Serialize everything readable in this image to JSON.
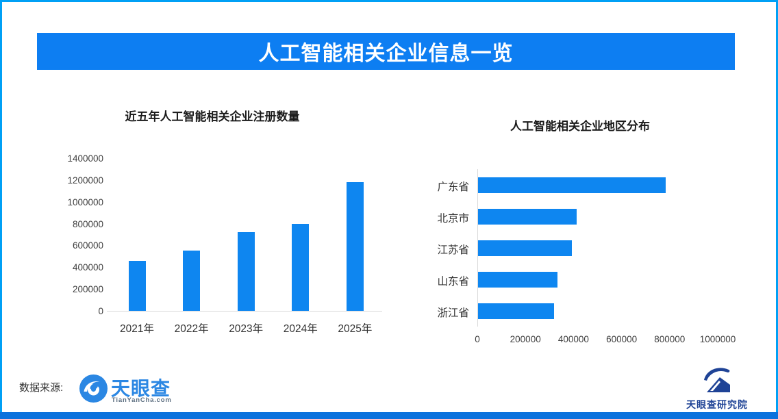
{
  "banner": {
    "title": "人工智能相关企业信息一览"
  },
  "footer": {
    "source_label": "数据来源:",
    "tianyancha": {
      "name": "天眼查",
      "domain": "TianYanCha.com"
    },
    "institute": {
      "name": "天眼查研究院"
    }
  },
  "colors": {
    "banner_blue": "#0D7EF2",
    "bar_blue": "#0E86F0",
    "frame_cyan": "#00A0F5",
    "bottom_bar_blue": "#0B72DD",
    "tianyancha_blue": "#2B87E3",
    "institute_navy": "#1F4396",
    "axis_gray": "#D9D9D9"
  },
  "chart_data": [
    {
      "type": "bar",
      "orientation": "vertical",
      "title": "近五年人工智能相关企业注册数量",
      "categories": [
        "2021年",
        "2022年",
        "2023年",
        "2024年",
        "2025年"
      ],
      "values": [
        460000,
        550000,
        725000,
        795000,
        1180000
      ],
      "xlabel": "",
      "ylabel": "",
      "ylim": [
        0,
        1400000
      ],
      "yticks": [
        0,
        200000,
        400000,
        600000,
        800000,
        1000000,
        1200000,
        1400000
      ],
      "grid": false,
      "legend": false,
      "bar_color": "#0E86F0"
    },
    {
      "type": "bar",
      "orientation": "horizontal",
      "title": "人工智能相关企业地区分布",
      "categories": [
        "广东省",
        "北京市",
        "江苏省",
        "山东省",
        "浙江省"
      ],
      "values": [
        780000,
        410000,
        390000,
        330000,
        315000
      ],
      "xlabel": "",
      "ylabel": "",
      "xlim": [
        0,
        1000000
      ],
      "xticks": [
        0,
        200000,
        400000,
        600000,
        800000,
        1000000
      ],
      "grid": false,
      "legend": false,
      "bar_color": "#0E86F0"
    }
  ]
}
